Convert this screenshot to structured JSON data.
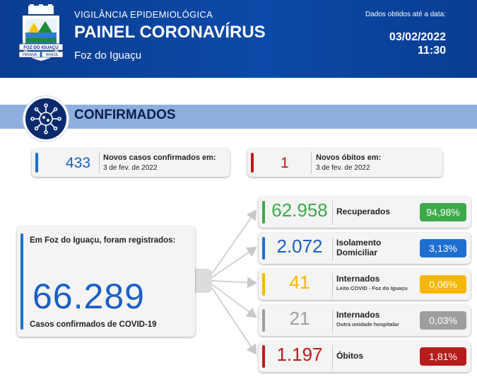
{
  "header": {
    "subtitle": "VIGILÂNCIA EPIDEMIOLÓGICA",
    "title": "PAINEL CORONAVÍRUS",
    "city": "Foz do Iguaçu",
    "data_label": "Dados obtidos até a data:",
    "date": "03/02/2022",
    "time": "11:30",
    "crest": {
      "banner": "FOZ DO IGUAÇU",
      "left_text": "PARANÁ",
      "right_text": "BRASIL"
    }
  },
  "section": {
    "title": "CONFIRMADOS",
    "icon": "virus-icon"
  },
  "summary": {
    "new_cases": {
      "value": "433",
      "label": "Novos casos confirmados em:",
      "date": "3 de fev. de 2022"
    },
    "new_deaths": {
      "value": "1",
      "label": "Novos óbitos em:",
      "date": "3 de fev. de 2022"
    }
  },
  "total": {
    "intro": "Em Foz do Iguaçu, foram registrados:",
    "value": "66.289",
    "caption": "Casos confirmados de COVID-19"
  },
  "breakdown": [
    {
      "value": "62.958",
      "label": "Recuperados",
      "sublabel": "",
      "percent": "94,98%",
      "color": "#3daa4a",
      "text_color": "#3daa4a"
    },
    {
      "value": "2.072",
      "label": "Isolamento Domiciliar",
      "sublabel": "",
      "percent": "3,13%",
      "color": "#1f6fd1",
      "text_color": "#1a5fc6"
    },
    {
      "value": "41",
      "label": "Internados",
      "sublabel": "Leito COVID - Foz do Iguaçu",
      "percent": "0,06%",
      "color": "#f5b800",
      "text_color": "#f5b800"
    },
    {
      "value": "21",
      "label": "Internados",
      "sublabel": "Outra unidade hospitalar",
      "percent": "0,03%",
      "color": "#9e9e9e",
      "text_color": "#9e9e9e"
    },
    {
      "value": "1.197",
      "label": "Óbitos",
      "sublabel": "",
      "percent": "1,81%",
      "color": "#b71c1c",
      "text_color": "#b71c1c"
    }
  ],
  "colors": {
    "header_bg": "#0b4aa8",
    "section_bar": "#8faee0",
    "accent_blue": "#1a5fc6",
    "accent_red": "#b71c1c"
  }
}
